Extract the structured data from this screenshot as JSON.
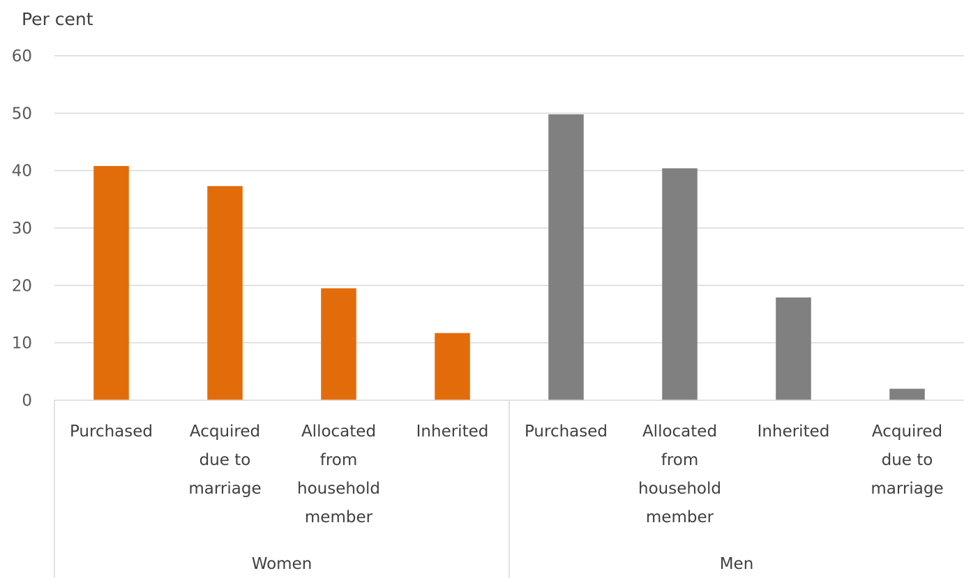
{
  "chart_data": {
    "type": "bar",
    "ylabel": "Per cent",
    "ylim": [
      0,
      60
    ],
    "yticks": [
      0,
      10,
      20,
      30,
      40,
      50,
      60
    ],
    "grid": true,
    "groups": [
      {
        "name": "Women",
        "color": "#E36C0A",
        "categories": [
          [
            "Purchased"
          ],
          [
            "Acquired",
            "due to",
            "marriage"
          ],
          [
            "Allocated",
            "from",
            "household",
            "member"
          ],
          [
            "Inherited"
          ]
        ],
        "values": [
          40.8,
          37.3,
          19.5,
          11.7
        ]
      },
      {
        "name": "Men",
        "color": "#808080",
        "categories": [
          [
            "Purchased"
          ],
          [
            "Allocated",
            "from",
            "household",
            "member"
          ],
          [
            "Inherited"
          ],
          [
            "Acquired",
            "due to",
            "marriage"
          ]
        ],
        "values": [
          49.8,
          40.4,
          17.9,
          2.0
        ]
      }
    ]
  }
}
